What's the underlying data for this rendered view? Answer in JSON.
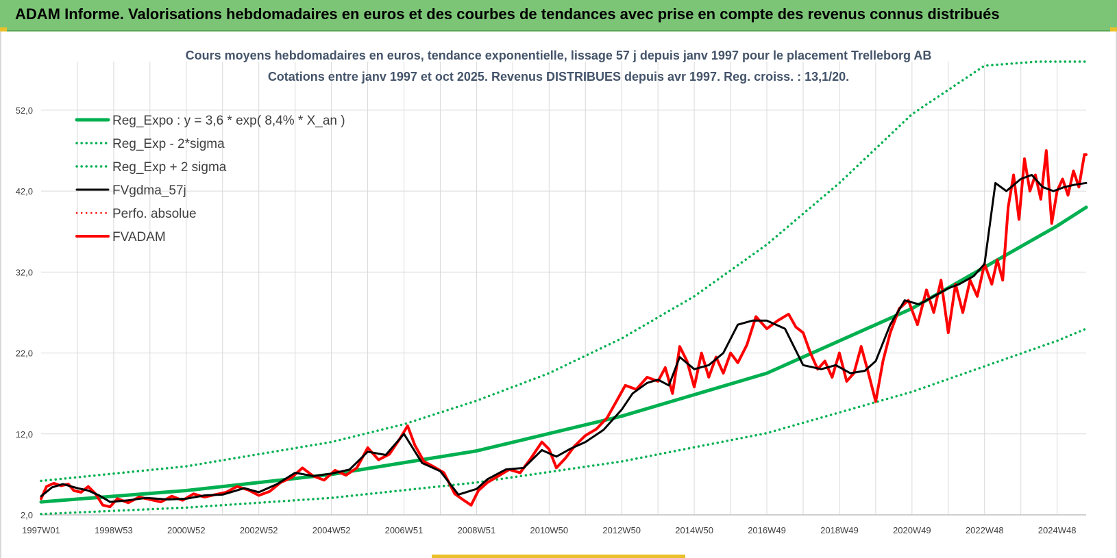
{
  "banner": {
    "title": "ADAM Informe. Valorisations hebdomadaires en euros et des courbes de tendances avec prise en compte des revenus connus distribués"
  },
  "colors": {
    "banner_bg": "#7cc576",
    "green": "#00b050",
    "black": "#000000",
    "red": "#ff0000",
    "grid": "#d9d9d9",
    "text": "#404040",
    "title_text": "#44546a"
  },
  "chart_data": {
    "type": "line",
    "title": "Cours moyens hebdomadaires en euros, tendance exponentielle, lissage 57 j depuis janv 1997 pour le placement Trelleborg AB",
    "subtitle": "Cotations entre janv 1997 et oct 2025. Revenus DISTRIBUES depuis avr 1997. Reg. croiss. : 13,1/20.",
    "xlabel": "",
    "ylabel": "",
    "xlim": [
      1997.0,
      2025.8
    ],
    "ylim": [
      2.0,
      58.0
    ],
    "y_ticks": [
      "2,0",
      "12,0",
      "22,0",
      "32,0",
      "42,0",
      "52,0"
    ],
    "y_tick_values": [
      2,
      12,
      22,
      32,
      42,
      52
    ],
    "x_ticks": [
      "1997W01",
      "1998W53",
      "2000W52",
      "2002W52",
      "2004W52",
      "2006W51",
      "2008W51",
      "2010W50",
      "2012W50",
      "2014W50",
      "2016W49",
      "2018W49",
      "2020W49",
      "2022W48",
      "2024W48"
    ],
    "x_tick_values": [
      1997.0,
      1999.0,
      2001.0,
      2003.0,
      2005.0,
      2007.0,
      2009.0,
      2011.0,
      2013.0,
      2015.0,
      2017.0,
      2019.0,
      2021.0,
      2023.0,
      2025.0
    ],
    "grid": true,
    "legend_position": "top-left",
    "legend": [
      {
        "label": "Reg_Expo : y = 3,6 * exp( 8,4% *  X_an )",
        "color": "#00b050",
        "style": "solid",
        "width": 5
      },
      {
        "label": "Reg_Exp - 2*sigma",
        "color": "#00b050",
        "style": "dotted",
        "width": 3.5
      },
      {
        "label": "Reg_Exp + 2 sigma",
        "color": "#00b050",
        "style": "dotted",
        "width": 3.5
      },
      {
        "label": "FVgdma_57j",
        "color": "#000000",
        "style": "solid",
        "width": 3
      },
      {
        "label": "Perfo. absolue",
        "color": "#ff0000",
        "style": "dotted",
        "width": 2.5
      },
      {
        "label": "FVADAM",
        "color": "#ff0000",
        "style": "solid",
        "width": 4
      }
    ],
    "series": [
      {
        "name": "Reg_Expo : y = 3,6 * exp( 8,4% *  X_an )",
        "style": "solid",
        "x": [
          1997.0,
          2001.0,
          2005.0,
          2009.0,
          2013.0,
          2017.0,
          2021.0,
          2025.0,
          2025.8
        ],
        "y": [
          3.6,
          5.0,
          7.0,
          9.9,
          14.2,
          19.5,
          27.5,
          37.7,
          40.0
        ]
      },
      {
        "name": "Reg_Exp - 2*sigma",
        "style": "dotted",
        "x": [
          1997.0,
          2001.0,
          2005.0,
          2009.0,
          2013.0,
          2017.0,
          2021.0,
          2025.0,
          2025.8
        ],
        "y": [
          2.1,
          2.9,
          4.1,
          6.0,
          8.6,
          12.1,
          17.2,
          23.5,
          25.0
        ]
      },
      {
        "name": "Reg_Exp + 2 sigma",
        "style": "dotted",
        "x": [
          1997.0,
          2001.0,
          2005.0,
          2007.0,
          2009.0,
          2011.0,
          2013.0,
          2015.0,
          2017.0,
          2019.0,
          2021.0,
          2023.0,
          2024.45,
          2025.8
        ],
        "y": [
          6.2,
          8.0,
          11.0,
          13.2,
          16.1,
          19.5,
          23.8,
          29.0,
          35.4,
          43.0,
          51.5,
          57.5,
          58.0,
          58.0
        ]
      },
      {
        "name": "FVgdma_57j",
        "style": "solid",
        "x": [
          1997.0,
          1997.3,
          1997.6,
          1998.0,
          1998.3,
          1998.6,
          1998.9,
          1999.4,
          1999.9,
          2000.5,
          2001.0,
          2001.5,
          2002.0,
          2002.6,
          2003.0,
          2003.5,
          2004.0,
          2004.5,
          2005.0,
          2005.5,
          2006.0,
          2006.5,
          2007.0,
          2007.5,
          2008.0,
          2008.5,
          2009.0,
          2009.3,
          2009.8,
          2010.3,
          2010.8,
          2011.2,
          2011.6,
          2012.0,
          2012.5,
          2013.0,
          2013.3,
          2013.7,
          2014.0,
          2014.3,
          2014.6,
          2015.0,
          2015.4,
          2015.8,
          2016.2,
          2016.6,
          2017.0,
          2017.5,
          2018.0,
          2018.5,
          2018.9,
          2019.3,
          2019.7,
          2020.0,
          2020.4,
          2020.8,
          2021.2,
          2021.6,
          2022.0,
          2022.3,
          2022.7,
          2023.0,
          2023.3,
          2023.6,
          2024.0,
          2024.3,
          2024.6,
          2024.9,
          2025.2,
          2025.5,
          2025.8
        ],
        "y": [
          4.3,
          5.4,
          5.8,
          5.3,
          5.0,
          4.4,
          3.6,
          3.8,
          4.1,
          3.9,
          4.0,
          4.4,
          4.5,
          5.3,
          4.8,
          5.8,
          7.2,
          6.8,
          7.1,
          7.6,
          9.8,
          9.4,
          12.0,
          8.4,
          7.4,
          4.5,
          5.2,
          6.4,
          7.6,
          7.8,
          10.0,
          9.2,
          10.2,
          11.0,
          12.5,
          15.0,
          17.0,
          18.3,
          18.7,
          18.0,
          21.5,
          20.0,
          20.5,
          22.0,
          25.5,
          26.0,
          26.0,
          25.0,
          20.5,
          20.0,
          20.5,
          19.5,
          19.8,
          21.0,
          25.5,
          28.5,
          28.0,
          29.0,
          30.0,
          30.5,
          31.5,
          33.0,
          43.0,
          42.0,
          43.5,
          44.0,
          42.5,
          42.0,
          42.5,
          42.8,
          43.0
        ]
      },
      {
        "name": "FVADAM",
        "style": "solid",
        "x": [
          1997.0,
          1997.15,
          1997.35,
          1997.55,
          1997.75,
          1997.9,
          1998.1,
          1998.3,
          1998.5,
          1998.7,
          1998.9,
          1999.1,
          1999.4,
          1999.7,
          2000.0,
          2000.3,
          2000.6,
          2000.9,
          2001.2,
          2001.5,
          2001.8,
          2002.1,
          2002.4,
          2002.7,
          2003.0,
          2003.3,
          2003.6,
          2003.9,
          2004.2,
          2004.5,
          2004.8,
          2005.1,
          2005.4,
          2005.7,
          2006.0,
          2006.3,
          2006.6,
          2006.9,
          2007.1,
          2007.3,
          2007.55,
          2007.8,
          2008.1,
          2008.4,
          2008.65,
          2008.85,
          2009.05,
          2009.3,
          2009.6,
          2009.9,
          2010.2,
          2010.5,
          2010.8,
          2011.0,
          2011.2,
          2011.45,
          2011.7,
          2012.0,
          2012.3,
          2012.6,
          2012.85,
          2013.1,
          2013.4,
          2013.7,
          2014.0,
          2014.2,
          2014.4,
          2014.6,
          2014.8,
          2015.0,
          2015.2,
          2015.4,
          2015.6,
          2015.8,
          2016.0,
          2016.2,
          2016.45,
          2016.7,
          2017.0,
          2017.3,
          2017.6,
          2017.8,
          2018.0,
          2018.2,
          2018.4,
          2018.6,
          2018.8,
          2019.0,
          2019.2,
          2019.4,
          2019.6,
          2019.8,
          2020.0,
          2020.2,
          2020.4,
          2020.65,
          2020.9,
          2021.15,
          2021.4,
          2021.6,
          2021.8,
          2022.0,
          2022.2,
          2022.4,
          2022.6,
          2022.8,
          2023.0,
          2023.2,
          2023.35,
          2023.5,
          2023.65,
          2023.8,
          2023.95,
          2024.1,
          2024.25,
          2024.4,
          2024.55,
          2024.7,
          2024.85,
          2025.0,
          2025.15,
          2025.3,
          2025.45,
          2025.6,
          2025.75,
          2025.8
        ],
        "y": [
          4.0,
          5.5,
          5.9,
          5.6,
          5.8,
          5.0,
          4.8,
          5.5,
          4.6,
          3.2,
          3.0,
          4.0,
          3.5,
          4.2,
          3.9,
          3.6,
          4.3,
          3.8,
          4.6,
          4.2,
          4.5,
          4.8,
          5.5,
          5.1,
          4.4,
          4.9,
          6.0,
          6.6,
          7.8,
          6.8,
          6.3,
          7.5,
          6.9,
          7.8,
          10.3,
          8.8,
          9.5,
          11.5,
          13.0,
          10.6,
          8.6,
          8.0,
          7.2,
          4.6,
          3.8,
          3.2,
          5.0,
          6.0,
          6.8,
          7.6,
          7.2,
          9.0,
          11.0,
          10.1,
          7.8,
          9.0,
          10.5,
          11.8,
          12.6,
          14.0,
          16.0,
          18.0,
          17.5,
          19.0,
          18.5,
          20.2,
          17.0,
          22.8,
          21.0,
          17.8,
          22.0,
          19.0,
          21.5,
          19.5,
          22.0,
          20.8,
          23.0,
          26.5,
          25.0,
          26.0,
          26.8,
          25.2,
          24.5,
          22.0,
          20.0,
          21.0,
          19.0,
          22.0,
          18.5,
          19.5,
          22.8,
          19.5,
          16.0,
          21.0,
          24.5,
          27.5,
          28.5,
          25.5,
          29.8,
          27.0,
          31.0,
          24.5,
          30.5,
          27.0,
          31.0,
          29.0,
          33.0,
          30.5,
          33.5,
          31.0,
          40.0,
          44.0,
          38.5,
          46.0,
          42.0,
          44.0,
          41.0,
          47.0,
          38.0,
          42.0,
          43.5,
          41.5,
          44.5,
          42.5,
          46.5,
          46.5
        ]
      }
    ]
  }
}
